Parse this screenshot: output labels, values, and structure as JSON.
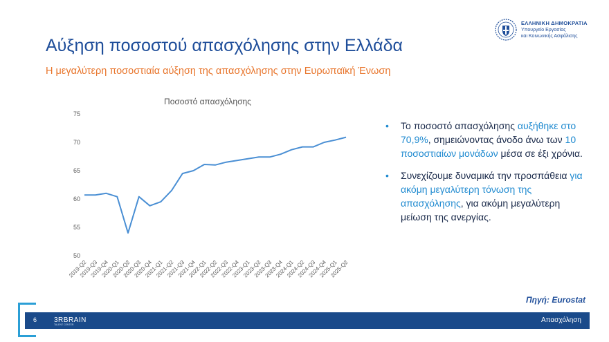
{
  "header": {
    "title": "Αύξηση ποσοστού απασχόλησης στην Ελλάδα",
    "subtitle": "Η μεγαλύτερη ποσοστιαία αύξηση της απασχόλησης στην Ευρωπαϊκή Ένωση"
  },
  "logo": {
    "line1": "ΕΛΛΗΝΙΚΗ ΔΗΜΟΚΡΑΤΙΑ",
    "line2": "Υπουργείο Εργασίας",
    "line3": "και Κοινωνικής Ασφάλισης",
    "icon": "greek-emblem-icon"
  },
  "chart_data": {
    "type": "line",
    "title": "Ποσοστό απασχόλησης",
    "xlabel": "",
    "ylabel": "",
    "ylim": [
      50,
      75
    ],
    "yticks": [
      50,
      55,
      60,
      65,
      70,
      75
    ],
    "grid": false,
    "color": "#4a8fd4",
    "x": [
      "2019-Q2",
      "2019-Q3",
      "2019-Q4",
      "2020-Q1",
      "2020-Q2",
      "2020-Q3",
      "2020-Q4",
      "2021-Q1",
      "2021-Q2",
      "2021-Q3",
      "2021-Q4",
      "2022-Q1",
      "2022-Q2",
      "2022-Q3",
      "2022-Q4",
      "2023-Q1",
      "2023-Q2",
      "2023-Q3",
      "2023-Q4",
      "2024-Q1",
      "2024-Q2",
      "2024-Q3",
      "2024-Q4",
      "2025-Q1",
      "2025-Q2"
    ],
    "values": [
      60.7,
      60.7,
      61.0,
      60.4,
      54.0,
      60.4,
      58.8,
      59.5,
      61.5,
      64.5,
      65.0,
      66.1,
      66.0,
      66.5,
      66.8,
      67.1,
      67.4,
      67.4,
      67.9,
      68.7,
      69.2,
      69.2,
      70.0,
      70.4,
      70.9
    ]
  },
  "bullets": [
    {
      "parts": [
        {
          "text": "Το ποσοστό απασχόλησης ",
          "hl": false
        },
        {
          "text": "αυξήθηκε στο 70,9%",
          "hl": true
        },
        {
          "text": ", σημειώνοντας άνοδο άνω των ",
          "hl": false
        },
        {
          "text": "10 ποσοστιαίων μονάδων",
          "hl": true
        },
        {
          "text": " μέσα σε έξι χρόνια.",
          "hl": false
        }
      ]
    },
    {
      "parts": [
        {
          "text": "Συνεχίζουμε δυναμικά την προσπάθεια ",
          "hl": false
        },
        {
          "text": "για ακόμη μεγαλύτερη τόνωση της απασχόλησης",
          "hl": true
        },
        {
          "text": ", για ακόμη μεγαλύτερη μείωση της ανεργίας.",
          "hl": false
        }
      ]
    }
  ],
  "source": "Πηγή: Eurostat",
  "footer": {
    "page": "6",
    "brand": "3RBRAIN",
    "brand_sub": "TALENT CENTER",
    "label": "Απασχόληση"
  }
}
